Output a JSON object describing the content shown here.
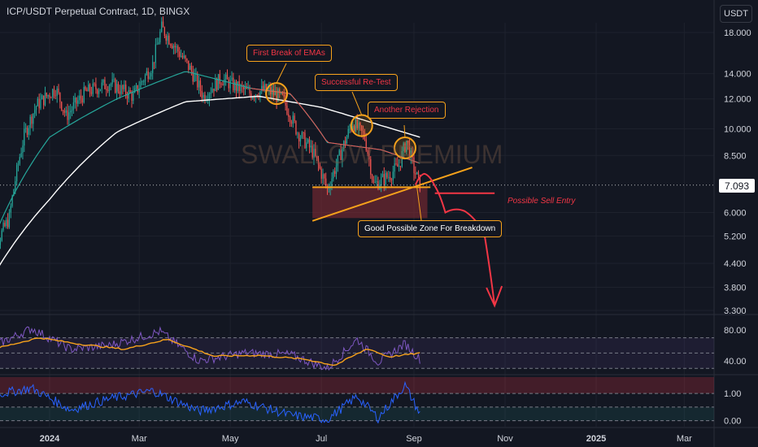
{
  "header": {
    "title": "ICP/USDT Perpetual Contract, 1D, BINGX",
    "currency_button": "USDT"
  },
  "watermark": "SWALLOW PREMIUM",
  "current_price": "7.093",
  "annotations": {
    "first_break": "First Break of EMAs",
    "retest": "Successful Re-Test",
    "rejection": "Another Rejection",
    "breakdown_zone": "Good Possible Zone For Breakdown",
    "sell_entry": "Possible Sell Entry"
  },
  "colors": {
    "background": "#131722",
    "up_candle": "#26a69a",
    "down_candle": "#ef5350",
    "ema_fast": "#26a69a",
    "ema_slow": "#ffffff",
    "annotation_border": "#f7a21b",
    "annotation_text": "#f23645",
    "support_zone": "#8b2b35",
    "rsi_line": "#7e57c2",
    "rsi_signal": "#f7a21b",
    "osc_line": "#2962ff"
  },
  "chart_data": [
    {
      "type": "candlestick",
      "title": "ICP/USDT Perpetual Contract, 1D, BINGX",
      "y_scale": "log",
      "y_ticks": [
        "18.000",
        "14.000",
        "12.000",
        "10.000",
        "8.500",
        "6.000",
        "5.200",
        "4.400",
        "3.800",
        "3.300"
      ],
      "y_tick_values": [
        18.0,
        14.0,
        12.0,
        10.0,
        8.5,
        6.0,
        5.2,
        4.4,
        3.8,
        3.3
      ],
      "ylim": [
        3.3,
        21.5
      ],
      "x_ticks": [
        "2024",
        "Mar",
        "May",
        "Jul",
        "Sep",
        "Nov",
        "2025",
        "Mar"
      ],
      "x_tick_dates": [
        "2024-01-01",
        "2024-03-01",
        "2024-05-01",
        "2024-07-01",
        "2024-09-01",
        "2024-11-01",
        "2025-01-01",
        "2025-03-01"
      ],
      "xlim": [
        "2023-11-20",
        "2025-03-20"
      ],
      "last_price": 7.093,
      "anchor_closes": [
        {
          "date": "2023-11-20",
          "close": 4.3
        },
        {
          "date": "2023-12-05",
          "close": 5.8
        },
        {
          "date": "2023-12-15",
          "close": 9.6
        },
        {
          "date": "2023-12-23",
          "close": 11.5
        },
        {
          "date": "2024-01-05",
          "close": 12.8
        },
        {
          "date": "2024-01-12",
          "close": 10.8
        },
        {
          "date": "2024-01-25",
          "close": 12.5
        },
        {
          "date": "2024-02-10",
          "close": 13.2
        },
        {
          "date": "2024-02-26",
          "close": 12.2
        },
        {
          "date": "2024-03-10",
          "close": 14.8
        },
        {
          "date": "2024-03-16",
          "close": 18.5
        },
        {
          "date": "2024-03-25",
          "close": 16.5
        },
        {
          "date": "2024-04-05",
          "close": 14.2
        },
        {
          "date": "2024-04-13",
          "close": 12.2
        },
        {
          "date": "2024-04-25",
          "close": 13.6
        },
        {
          "date": "2024-05-05",
          "close": 12.9
        },
        {
          "date": "2024-05-15",
          "close": 12.4
        },
        {
          "date": "2024-05-25",
          "close": 12.7
        },
        {
          "date": "2024-06-05",
          "close": 12.0
        },
        {
          "date": "2024-06-15",
          "close": 9.8
        },
        {
          "date": "2024-06-25",
          "close": 8.7
        },
        {
          "date": "2024-07-05",
          "close": 6.9
        },
        {
          "date": "2024-07-12",
          "close": 8.2
        },
        {
          "date": "2024-07-22",
          "close": 10.4
        },
        {
          "date": "2024-07-30",
          "close": 9.5
        },
        {
          "date": "2024-08-05",
          "close": 7.1
        },
        {
          "date": "2024-08-15",
          "close": 7.5
        },
        {
          "date": "2024-08-22",
          "close": 8.0
        },
        {
          "date": "2024-08-27",
          "close": 9.3
        },
        {
          "date": "2024-09-01",
          "close": 7.8
        },
        {
          "date": "2024-09-05",
          "close": 7.09
        }
      ],
      "ema_fast_anchors": [
        {
          "date": "2023-11-20",
          "value": 4.6
        },
        {
          "date": "2024-01-01",
          "value": 9.5
        },
        {
          "date": "2024-02-15",
          "value": 12.0
        },
        {
          "date": "2024-04-01",
          "value": 14.2
        },
        {
          "date": "2024-05-15",
          "value": 12.8
        },
        {
          "date": "2024-06-10",
          "value": 12.4
        },
        {
          "date": "2024-07-05",
          "value": 9.2
        },
        {
          "date": "2024-08-10",
          "value": 8.8
        },
        {
          "date": "2024-09-05",
          "value": 8.1
        }
      ],
      "ema_slow_anchors": [
        {
          "date": "2023-11-20",
          "value": 3.8
        },
        {
          "date": "2024-01-01",
          "value": 6.5
        },
        {
          "date": "2024-02-15",
          "value": 9.8
        },
        {
          "date": "2024-04-01",
          "value": 11.8
        },
        {
          "date": "2024-05-20",
          "value": 12.2
        },
        {
          "date": "2024-07-01",
          "value": 11.4
        },
        {
          "date": "2024-08-10",
          "value": 10.2
        },
        {
          "date": "2024-09-05",
          "value": 9.5
        }
      ],
      "support_zone": {
        "from": "2024-06-25",
        "to": "2024-09-10",
        "low": 5.8,
        "high": 7.0
      },
      "support_level": 7.0,
      "rising_trendline": [
        {
          "date": "2024-06-25",
          "value": 5.7
        },
        {
          "date": "2024-10-10",
          "value": 7.9
        }
      ],
      "sell_entry_level": {
        "from": "2024-09-15",
        "to": "2024-10-25",
        "value": 6.75
      },
      "projected_path": [
        {
          "date": "2024-09-02",
          "value": 7.1
        },
        {
          "date": "2024-09-08",
          "value": 7.6
        },
        {
          "date": "2024-09-15",
          "value": 7.05
        },
        {
          "date": "2024-09-22",
          "value": 6.0
        },
        {
          "date": "2024-10-05",
          "value": 6.05
        },
        {
          "date": "2024-10-18",
          "value": 5.3
        },
        {
          "date": "2024-10-25",
          "value": 3.4
        }
      ],
      "highlight_circles": [
        {
          "date": "2024-06-01",
          "value": 12.4
        },
        {
          "date": "2024-07-28",
          "value": 10.2
        },
        {
          "date": "2024-08-26",
          "value": 8.9
        }
      ],
      "grid": true
    },
    {
      "type": "line",
      "title": "",
      "y_ticks": [
        "80.00",
        "40.00"
      ],
      "y_tick_values": [
        80,
        40
      ],
      "ylim": [
        25,
        95
      ],
      "bands": [
        70,
        50,
        30
      ],
      "series": [
        {
          "values_at": [
            {
              "date": "2023-11-20",
              "value": 55
            },
            {
              "date": "2023-12-20",
              "value": 82
            },
            {
              "date": "2024-01-15",
              "value": 55
            },
            {
              "date": "2024-02-10",
              "value": 60
            },
            {
              "date": "2024-03-15",
              "value": 78
            },
            {
              "date": "2024-04-10",
              "value": 40
            },
            {
              "date": "2024-05-10",
              "value": 50
            },
            {
              "date": "2024-06-10",
              "value": 48
            },
            {
              "date": "2024-07-05",
              "value": 30
            },
            {
              "date": "2024-07-25",
              "value": 68
            },
            {
              "date": "2024-08-08",
              "value": 38
            },
            {
              "date": "2024-08-26",
              "value": 62
            },
            {
              "date": "2024-09-05",
              "value": 42
            }
          ]
        },
        {
          "values_at": [
            {
              "date": "2023-11-20",
              "value": 53
            },
            {
              "date": "2023-12-25",
              "value": 70
            },
            {
              "date": "2024-01-20",
              "value": 62
            },
            {
              "date": "2024-02-20",
              "value": 55
            },
            {
              "date": "2024-03-20",
              "value": 68
            },
            {
              "date": "2024-04-20",
              "value": 46
            },
            {
              "date": "2024-05-20",
              "value": 47
            },
            {
              "date": "2024-06-20",
              "value": 42
            },
            {
              "date": "2024-07-10",
              "value": 34
            },
            {
              "date": "2024-08-01",
              "value": 56
            },
            {
              "date": "2024-08-15",
              "value": 45
            },
            {
              "date": "2024-09-05",
              "value": 50
            }
          ]
        }
      ]
    },
    {
      "type": "line",
      "title": "",
      "y_ticks": [
        "1.00",
        "0.00"
      ],
      "y_tick_values": [
        1.0,
        0.0
      ],
      "ylim": [
        -0.1,
        1.6
      ],
      "bands": [
        1.0,
        0.5,
        0.0
      ],
      "series": [
        {
          "values_at": [
            {
              "date": "2023-11-20",
              "value": 0.9
            },
            {
              "date": "2023-12-20",
              "value": 1.2
            },
            {
              "date": "2024-01-15",
              "value": 0.4
            },
            {
              "date": "2024-02-10",
              "value": 0.8
            },
            {
              "date": "2024-03-10",
              "value": 1.1
            },
            {
              "date": "2024-04-10",
              "value": 0.35
            },
            {
              "date": "2024-05-10",
              "value": 0.7
            },
            {
              "date": "2024-06-10",
              "value": 0.2
            },
            {
              "date": "2024-07-05",
              "value": 0.05
            },
            {
              "date": "2024-07-25",
              "value": 0.9
            },
            {
              "date": "2024-08-08",
              "value": 0.1
            },
            {
              "date": "2024-08-26",
              "value": 1.3
            },
            {
              "date": "2024-09-05",
              "value": 0.25
            }
          ]
        }
      ]
    }
  ]
}
